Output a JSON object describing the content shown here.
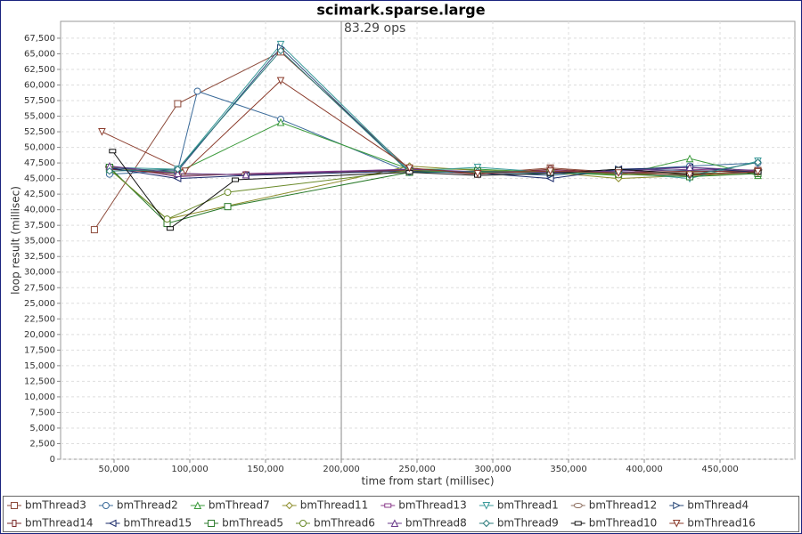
{
  "chart_data": {
    "type": "line",
    "title": "scimark.sparse.large",
    "x_label": "time from start (millisec)",
    "y_label": "loop result (millisec)",
    "annotation": {
      "text": "83.29 ops",
      "x": 200000
    },
    "xlim": [
      14700,
      499400
    ],
    "ylim": [
      0,
      70200
    ],
    "grid": true,
    "legend": "bottom",
    "xticks": [
      {
        "value": 50000,
        "label": "50,000"
      },
      {
        "value": 100000,
        "label": "100,000"
      },
      {
        "value": 150000,
        "label": "150,000"
      },
      {
        "value": 200000,
        "label": "200,000"
      },
      {
        "value": 250000,
        "label": "250,000"
      },
      {
        "value": 300000,
        "label": "300,000"
      },
      {
        "value": 350000,
        "label": "350,000"
      },
      {
        "value": 400000,
        "label": "400,000"
      },
      {
        "value": 450000,
        "label": "450,000"
      }
    ],
    "yticks": [
      0,
      {
        "value": 2500,
        "label": "2,500"
      },
      {
        "value": 5000,
        "label": "5,000"
      },
      {
        "value": 7500,
        "label": "7,500"
      },
      {
        "value": 10000,
        "label": "10,000"
      },
      {
        "value": 12500,
        "label": "12,500"
      },
      {
        "value": 15000,
        "label": "15,000"
      },
      {
        "value": 17500,
        "label": "17,500"
      },
      {
        "value": 20000,
        "label": "20,000"
      },
      {
        "value": 22500,
        "label": "22,500"
      },
      {
        "value": 25000,
        "label": "25,000"
      },
      {
        "value": 27500,
        "label": "27,500"
      },
      {
        "value": 30000,
        "label": "30,000"
      },
      {
        "value": 32500,
        "label": "32,500"
      },
      {
        "value": 35000,
        "label": "35,000"
      },
      {
        "value": 37500,
        "label": "37,500"
      },
      {
        "value": 40000,
        "label": "40,000"
      },
      {
        "value": 42500,
        "label": "42,500"
      },
      {
        "value": 45000,
        "label": "45,000"
      },
      {
        "value": 47500,
        "label": "47,500"
      },
      {
        "value": 50000,
        "label": "50,000"
      },
      {
        "value": 52500,
        "label": "52,500"
      },
      {
        "value": 55000,
        "label": "55,000"
      },
      {
        "value": 57500,
        "label": "57,500"
      },
      {
        "value": 60000,
        "label": "60,000"
      },
      {
        "value": 62500,
        "label": "62,500"
      },
      {
        "value": 65000,
        "label": "65,000"
      },
      {
        "value": 67500,
        "label": "67,500"
      }
    ],
    "series": [
      {
        "name": "bmThread3",
        "color": "#8c4a3a",
        "marker": "square",
        "x": [
          37000,
          92000,
          160000,
          245000,
          290000,
          338000,
          383000,
          430000,
          475000
        ],
        "values": [
          36800,
          57000,
          65300,
          46500,
          45800,
          46700,
          46000,
          45500,
          46300
        ]
      },
      {
        "name": "bmThread2",
        "color": "#3a6a99",
        "marker": "circle",
        "x": [
          47000,
          92000,
          105000,
          160000,
          245000,
          290000,
          338000,
          383000,
          430000,
          475000
        ],
        "values": [
          45700,
          46300,
          59000,
          54500,
          46000,
          46000,
          45500,
          46300,
          47000,
          47500
        ]
      },
      {
        "name": "bmThread7",
        "color": "#3a9a3a",
        "marker": "triangle-up",
        "x": [
          47000,
          92000,
          160000,
          245000,
          290000,
          338000,
          383000,
          430000,
          475000
        ],
        "values": [
          46500,
          46000,
          54000,
          46500,
          46500,
          46000,
          45500,
          48200,
          45500
        ]
      },
      {
        "name": "bmThread11",
        "color": "#8c8c2a",
        "marker": "diamond",
        "x": [
          47000,
          85000,
          245000,
          290000,
          338000,
          383000,
          430000,
          475000
        ],
        "values": [
          46500,
          38500,
          47000,
          46300,
          46000,
          45000,
          45500,
          45800
        ]
      },
      {
        "name": "bmThread13",
        "color": "#8a3a8a",
        "marker": "hrect",
        "x": [
          47000,
          92000,
          137000,
          245000,
          290000,
          338000,
          383000,
          430000,
          475000
        ],
        "values": [
          47000,
          45300,
          45800,
          46500,
          46000,
          46300,
          46000,
          46500,
          46200
        ]
      },
      {
        "name": "bmThread1",
        "color": "#3a9a9a",
        "marker": "triangle-down",
        "x": [
          47000,
          92000,
          160000,
          245000,
          290000,
          338000,
          383000,
          430000,
          475000
        ],
        "values": [
          46800,
          46500,
          66500,
          46200,
          46800,
          46000,
          46000,
          45000,
          47800
        ]
      },
      {
        "name": "bmThread12",
        "color": "#8a6a5a",
        "marker": "ellipse",
        "x": [
          47000,
          92000,
          137000,
          245000,
          290000,
          338000,
          383000,
          430000,
          475000
        ],
        "values": [
          46900,
          45500,
          45700,
          46300,
          45900,
          46200,
          45800,
          46000,
          46400
        ]
      },
      {
        "name": "bmThread4",
        "color": "#2a4a7a",
        "marker": "triangle-right",
        "x": [
          47000,
          92000,
          160000,
          245000,
          290000,
          338000,
          383000,
          430000,
          475000
        ],
        "values": [
          46700,
          46200,
          66000,
          46000,
          46200,
          45800,
          46500,
          46300,
          46000
        ]
      },
      {
        "name": "bmThread14",
        "color": "#7a2a2a",
        "marker": "vrect",
        "x": [
          47000,
          92000,
          137000,
          245000,
          290000,
          338000,
          383000,
          430000,
          475000
        ],
        "values": [
          46500,
          45800,
          45600,
          46400,
          45700,
          46500,
          45900,
          46200,
          46100
        ]
      },
      {
        "name": "bmThread15",
        "color": "#1a2a6a",
        "marker": "triangle-left",
        "x": [
          47000,
          92000,
          137000,
          245000,
          290000,
          338000,
          383000,
          430000,
          475000
        ],
        "values": [
          46700,
          45000,
          45500,
          46200,
          45900,
          45000,
          46500,
          46800,
          46000
        ]
      },
      {
        "name": "bmThread5",
        "color": "#2a7a2a",
        "marker": "square",
        "x": [
          47000,
          85000,
          125000,
          245000,
          290000,
          338000,
          383000,
          430000,
          475000
        ],
        "values": [
          46800,
          37800,
          40500,
          46000,
          46200,
          46000,
          45700,
          45300,
          45800
        ]
      },
      {
        "name": "bmThread6",
        "color": "#6a8a2a",
        "marker": "circle",
        "x": [
          47000,
          85000,
          125000,
          245000,
          290000,
          338000,
          383000,
          430000,
          475000
        ],
        "values": [
          46500,
          38500,
          42800,
          46300,
          46000,
          46200,
          45600,
          45800,
          46000
        ]
      },
      {
        "name": "bmThread8",
        "color": "#6a3a8a",
        "marker": "triangle-up",
        "x": [
          47000,
          92000,
          137000,
          245000,
          290000,
          338000,
          383000,
          430000,
          475000
        ],
        "values": [
          47000,
          45800,
          45600,
          46500,
          46100,
          46000,
          46200,
          46800,
          46300
        ]
      },
      {
        "name": "bmThread9",
        "color": "#2a7a7a",
        "marker": "diamond",
        "x": [
          47000,
          92000,
          160000,
          245000,
          290000,
          338000,
          383000,
          430000,
          475000
        ],
        "values": [
          46200,
          46500,
          65500,
          46000,
          46100,
          45800,
          46000,
          45500,
          47600
        ]
      },
      {
        "name": "bmThread10",
        "color": "#111111",
        "marker": "hrect",
        "x": [
          49000,
          87000,
          130000,
          245000,
          290000,
          338000,
          383000,
          430000,
          475000
        ],
        "values": [
          49400,
          37000,
          44800,
          46000,
          45500,
          45800,
          46500,
          45700,
          46000
        ]
      },
      {
        "name": "bmThread16",
        "color": "#8a3a2a",
        "marker": "triangle-down",
        "x": [
          42000,
          97000,
          160000,
          245000,
          290000,
          338000,
          383000,
          430000,
          475000
        ],
        "values": [
          52500,
          46200,
          60700,
          46700,
          45800,
          46200,
          45900,
          45600,
          46100
        ]
      }
    ]
  }
}
